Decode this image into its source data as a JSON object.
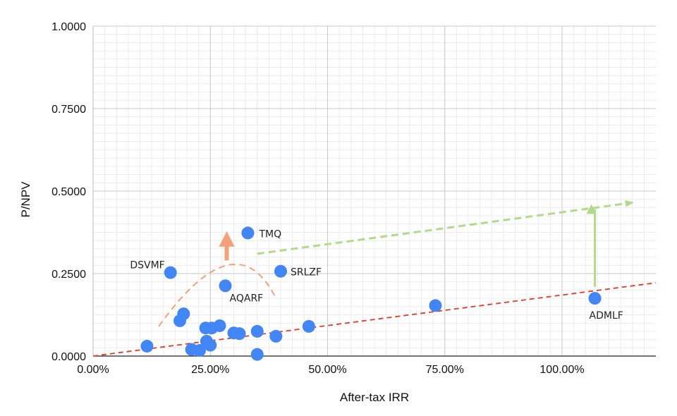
{
  "chart_data": {
    "type": "scatter",
    "title": "",
    "xlabel": "After-tax IRR",
    "ylabel": "P/NPV",
    "xlim": [
      0,
      1.2
    ],
    "ylim": [
      0,
      1.0
    ],
    "x_ticks": [
      {
        "value": 0,
        "label": "0.00%"
      },
      {
        "value": 0.25,
        "label": "25.00%"
      },
      {
        "value": 0.5,
        "label": "50.00%"
      },
      {
        "value": 0.75,
        "label": "75.00%"
      },
      {
        "value": 1.0,
        "label": "100.00%"
      }
    ],
    "y_ticks": [
      {
        "value": 0,
        "label": "0.0000"
      },
      {
        "value": 0.25,
        "label": "0.2500"
      },
      {
        "value": 0.5,
        "label": "0.5000"
      },
      {
        "value": 0.75,
        "label": "0.7500"
      },
      {
        "value": 1.0,
        "label": "1.0000"
      }
    ],
    "grid": true,
    "point_color": "#4285f4",
    "points": [
      {
        "x": 0.115,
        "y": 0.03,
        "label": ""
      },
      {
        "x": 0.165,
        "y": 0.253,
        "label": "DSVMF"
      },
      {
        "x": 0.185,
        "y": 0.107,
        "label": ""
      },
      {
        "x": 0.193,
        "y": 0.128,
        "label": ""
      },
      {
        "x": 0.21,
        "y": 0.02,
        "label": ""
      },
      {
        "x": 0.227,
        "y": 0.017,
        "label": ""
      },
      {
        "x": 0.24,
        "y": 0.085,
        "label": ""
      },
      {
        "x": 0.242,
        "y": 0.045,
        "label": ""
      },
      {
        "x": 0.25,
        "y": 0.033,
        "label": ""
      },
      {
        "x": 0.253,
        "y": 0.085,
        "label": ""
      },
      {
        "x": 0.27,
        "y": 0.092,
        "label": ""
      },
      {
        "x": 0.282,
        "y": 0.213,
        "label": "AQARF"
      },
      {
        "x": 0.3,
        "y": 0.07,
        "label": ""
      },
      {
        "x": 0.312,
        "y": 0.068,
        "label": ""
      },
      {
        "x": 0.33,
        "y": 0.373,
        "label": "TMQ"
      },
      {
        "x": 0.35,
        "y": 0.075,
        "label": ""
      },
      {
        "x": 0.35,
        "y": 0.005,
        "label": ""
      },
      {
        "x": 0.39,
        "y": 0.06,
        "label": ""
      },
      {
        "x": 0.4,
        "y": 0.257,
        "label": "SRLZF"
      },
      {
        "x": 0.46,
        "y": 0.09,
        "label": ""
      },
      {
        "x": 0.73,
        "y": 0.153,
        "label": ""
      },
      {
        "x": 1.07,
        "y": 0.175,
        "label": "ADMLF"
      }
    ],
    "annotations": [
      {
        "type": "trendline",
        "style": "dashed",
        "color": "#e03a2a",
        "from": [
          0,
          0
        ],
        "to": [
          1.2,
          0.222
        ]
      },
      {
        "type": "arrow",
        "style": "dashed",
        "color": "#b3d98a",
        "from": [
          0.35,
          0.31
        ],
        "to": [
          1.15,
          0.465
        ]
      },
      {
        "type": "arrow",
        "style": "solid",
        "color": "#b3d98a",
        "from": [
          1.07,
          0.21
        ],
        "to": [
          1.07,
          0.445
        ]
      },
      {
        "type": "arc",
        "style": "dashed",
        "color": "#f4a07a",
        "from": [
          0.14,
          0.09
        ],
        "peak": [
          0.285,
          0.275
        ],
        "to": [
          0.39,
          0.175
        ]
      },
      {
        "type": "arrow",
        "style": "solid",
        "color": "#f4a07a",
        "from": [
          0.285,
          0.29
        ],
        "to": [
          0.285,
          0.355
        ]
      }
    ]
  }
}
